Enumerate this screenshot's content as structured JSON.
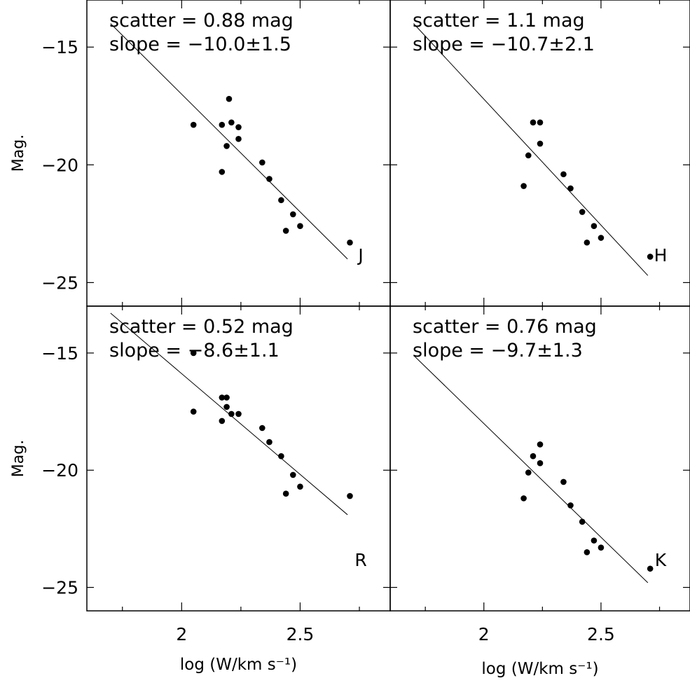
{
  "chart_data": [
    {
      "type": "scatter",
      "band": "J",
      "annotations": [
        "scatter = 0.88 mag",
        "slope = −10.0±1.5"
      ],
      "xlim": [
        1.6,
        2.88
      ],
      "ylim": [
        -13.0,
        -26.0
      ],
      "xticks": [
        2,
        2.5
      ],
      "xtick_labels": [
        "",
        ""
      ],
      "yticks": [
        -25,
        -20,
        -15
      ],
      "ytick_labels": [
        "−25",
        "−20",
        "−15"
      ],
      "ylabel": "Mag.",
      "xlabel": "",
      "fit_line": {
        "x": [
          1.7,
          2.7
        ],
        "y": [
          -14.0,
          -24.0
        ]
      },
      "points": [
        {
          "x": 2.05,
          "y": -18.3
        },
        {
          "x": 2.17,
          "y": -20.3
        },
        {
          "x": 2.17,
          "y": -18.3
        },
        {
          "x": 2.19,
          "y": -19.2
        },
        {
          "x": 2.2,
          "y": -17.2
        },
        {
          "x": 2.21,
          "y": -18.2
        },
        {
          "x": 2.24,
          "y": -18.9
        },
        {
          "x": 2.24,
          "y": -18.4
        },
        {
          "x": 2.34,
          "y": -19.9
        },
        {
          "x": 2.37,
          "y": -20.6
        },
        {
          "x": 2.42,
          "y": -21.5
        },
        {
          "x": 2.44,
          "y": -22.8
        },
        {
          "x": 2.47,
          "y": -22.1
        },
        {
          "x": 2.5,
          "y": -22.6
        },
        {
          "x": 2.71,
          "y": -23.3
        }
      ]
    },
    {
      "type": "scatter",
      "band": "H",
      "annotations": [
        "scatter = 1.1 mag",
        "slope = −10.7±2.1"
      ],
      "xlim": [
        1.6,
        2.88
      ],
      "ylim": [
        -13.0,
        -26.0
      ],
      "xticks": [
        2,
        2.5
      ],
      "xtick_labels": [
        "",
        ""
      ],
      "yticks": [
        -25,
        -20,
        -15
      ],
      "ytick_labels": [
        "",
        "",
        ""
      ],
      "ylabel": "",
      "xlabel": "",
      "fit_line": {
        "x": [
          1.7,
          2.7
        ],
        "y": [
          -14.0,
          -24.7
        ]
      },
      "points": [
        {
          "x": 2.17,
          "y": -20.9
        },
        {
          "x": 2.19,
          "y": -19.6
        },
        {
          "x": 2.21,
          "y": -18.2
        },
        {
          "x": 2.24,
          "y": -18.2
        },
        {
          "x": 2.24,
          "y": -19.1
        },
        {
          "x": 2.34,
          "y": -20.4
        },
        {
          "x": 2.37,
          "y": -21.0
        },
        {
          "x": 2.42,
          "y": -22.0
        },
        {
          "x": 2.44,
          "y": -23.3
        },
        {
          "x": 2.47,
          "y": -22.6
        },
        {
          "x": 2.5,
          "y": -23.1
        },
        {
          "x": 2.71,
          "y": -23.9
        }
      ]
    },
    {
      "type": "scatter",
      "band": "R",
      "annotations": [
        "scatter = 0.52 mag",
        "slope = −8.6±1.1"
      ],
      "xlim": [
        1.6,
        2.88
      ],
      "ylim": [
        -13.0,
        -26.0
      ],
      "xticks": [
        2,
        2.5
      ],
      "xtick_labels": [
        "2",
        "2.5"
      ],
      "yticks": [
        -25,
        -20,
        -15
      ],
      "ytick_labels": [
        "−25",
        "−20",
        "−15"
      ],
      "ylabel": "Mag.",
      "xlabel": "log (W/km s⁻¹)",
      "fit_line": {
        "x": [
          1.7,
          2.7
        ],
        "y": [
          -13.3,
          -21.9
        ]
      },
      "points": [
        {
          "x": 2.05,
          "y": -17.5
        },
        {
          "x": 2.05,
          "y": -15.0
        },
        {
          "x": 2.17,
          "y": -17.9
        },
        {
          "x": 2.17,
          "y": -16.9
        },
        {
          "x": 2.19,
          "y": -17.3
        },
        {
          "x": 2.19,
          "y": -16.9
        },
        {
          "x": 2.21,
          "y": -17.6
        },
        {
          "x": 2.24,
          "y": -17.6
        },
        {
          "x": 2.34,
          "y": -18.2
        },
        {
          "x": 2.37,
          "y": -18.8
        },
        {
          "x": 2.42,
          "y": -19.4
        },
        {
          "x": 2.44,
          "y": -21.0
        },
        {
          "x": 2.47,
          "y": -20.2
        },
        {
          "x": 2.5,
          "y": -20.7
        },
        {
          "x": 2.71,
          "y": -21.1
        }
      ]
    },
    {
      "type": "scatter",
      "band": "K",
      "annotations": [
        "scatter = 0.76 mag",
        "slope = −9.7±1.3"
      ],
      "xlim": [
        1.6,
        2.88
      ],
      "ylim": [
        -13.0,
        -26.0
      ],
      "xticks": [
        2,
        2.5
      ],
      "xtick_labels": [
        "2",
        "2.5"
      ],
      "yticks": [
        -25,
        -20,
        -15
      ],
      "ytick_labels": [
        "",
        "",
        ""
      ],
      "ylabel": "",
      "xlabel": "log (W/km s⁻¹)",
      "fit_line": {
        "x": [
          1.7,
          2.7
        ],
        "y": [
          -15.1,
          -24.8
        ]
      },
      "points": [
        {
          "x": 2.17,
          "y": -21.2
        },
        {
          "x": 2.19,
          "y": -20.1
        },
        {
          "x": 2.21,
          "y": -19.4
        },
        {
          "x": 2.24,
          "y": -19.7
        },
        {
          "x": 2.24,
          "y": -18.9
        },
        {
          "x": 2.34,
          "y": -20.5
        },
        {
          "x": 2.37,
          "y": -21.5
        },
        {
          "x": 2.42,
          "y": -22.2
        },
        {
          "x": 2.44,
          "y": -23.5
        },
        {
          "x": 2.47,
          "y": -23.0
        },
        {
          "x": 2.5,
          "y": -23.3
        },
        {
          "x": 2.71,
          "y": -24.2
        }
      ]
    }
  ]
}
